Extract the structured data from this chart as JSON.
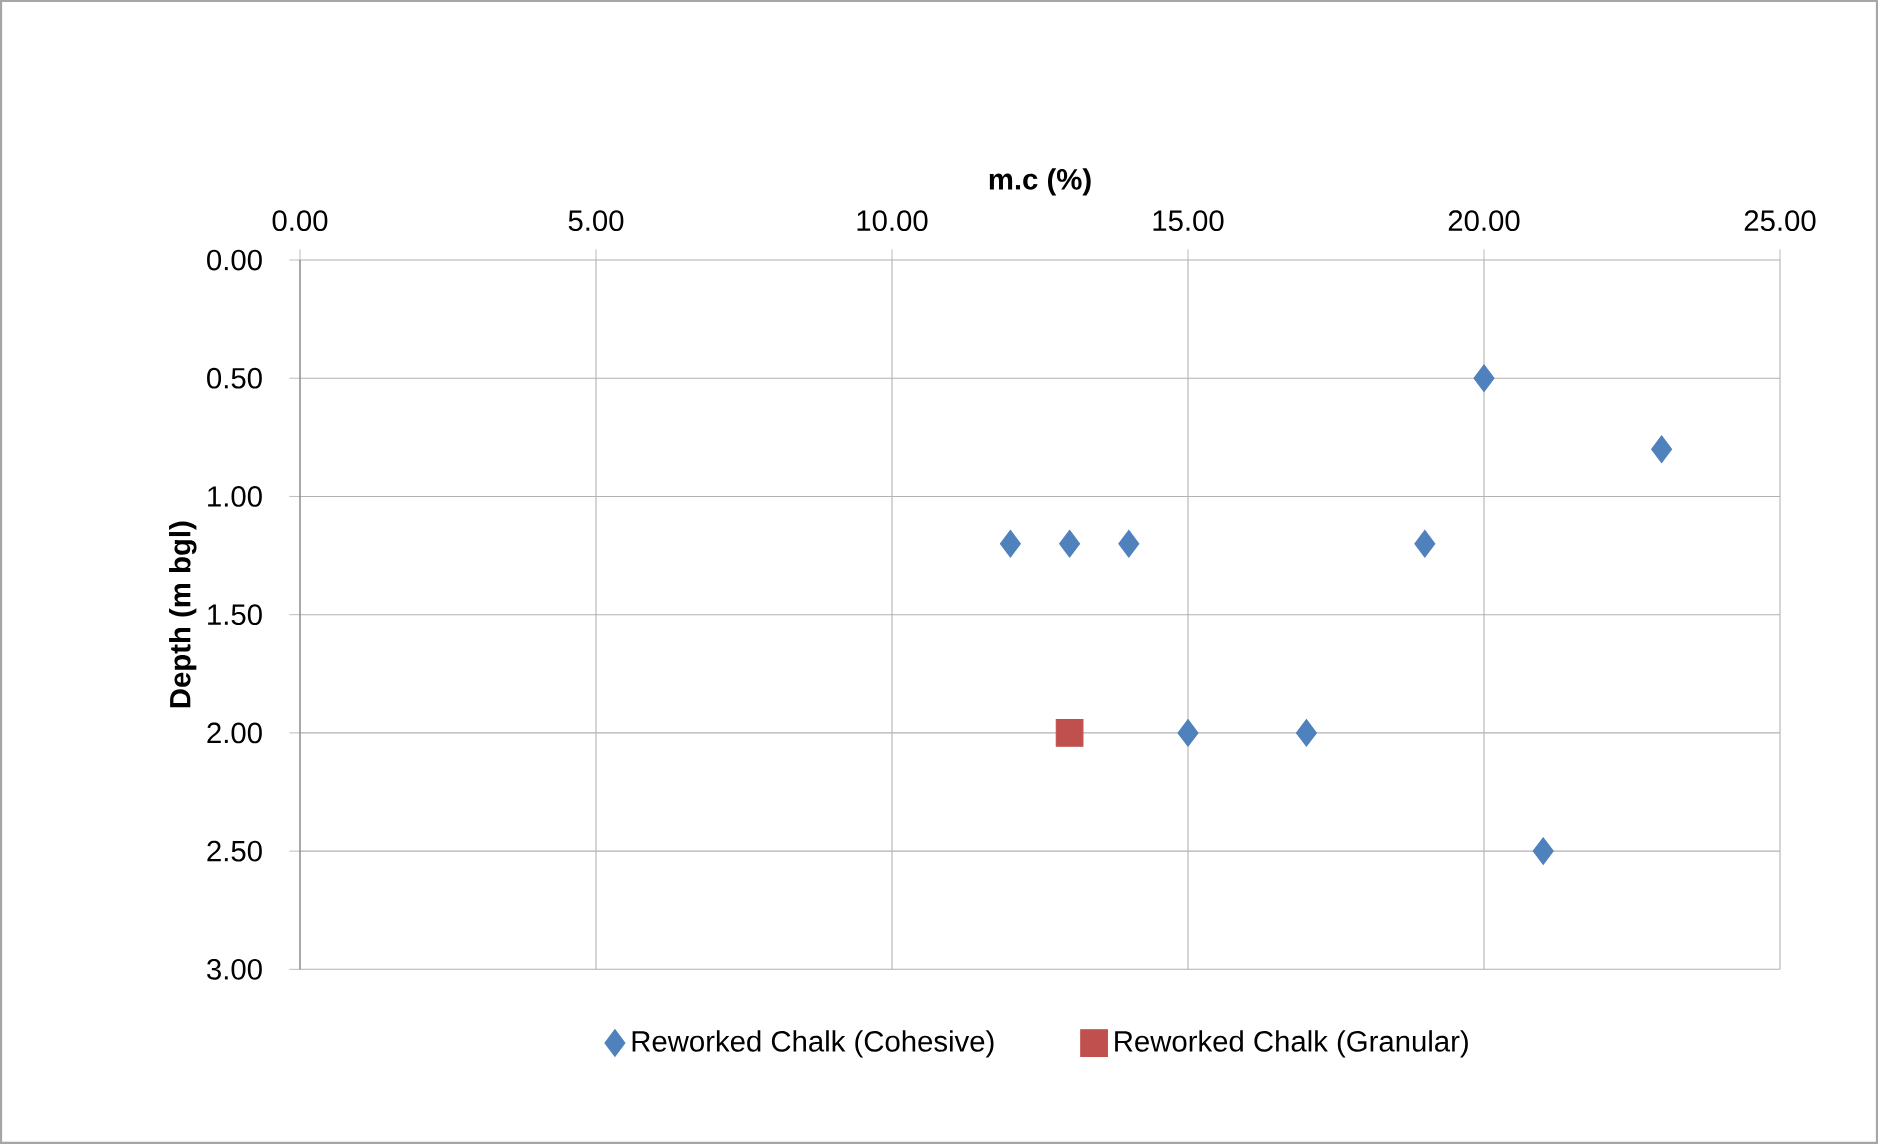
{
  "chart_data": {
    "type": "scatter",
    "xlabel": "m.c (%)",
    "ylabel": "Depth (m bgl)",
    "xlim": [
      0,
      25
    ],
    "ylim": [
      3,
      0
    ],
    "xticks": [
      {
        "value": 0,
        "label": "0.00"
      },
      {
        "value": 5,
        "label": "5.00"
      },
      {
        "value": 10,
        "label": "10.00"
      },
      {
        "value": 15,
        "label": "15.00"
      },
      {
        "value": 20,
        "label": "20.00"
      },
      {
        "value": 25,
        "label": "25.00"
      }
    ],
    "yticks": [
      {
        "value": 0,
        "label": "0.00"
      },
      {
        "value": 0.5,
        "label": "0.50"
      },
      {
        "value": 1,
        "label": "1.00"
      },
      {
        "value": 1.5,
        "label": "1.50"
      },
      {
        "value": 2,
        "label": "2.00"
      },
      {
        "value": 2.5,
        "label": "2.50"
      },
      {
        "value": 3,
        "label": "3.00"
      }
    ],
    "grid": true,
    "legend": "bottom",
    "series": [
      {
        "name": "Reworked Chalk (Cohesive)",
        "color": "#4f81bd",
        "marker": "diamond",
        "x": [
          20,
          23,
          12,
          13,
          14,
          19,
          15,
          17,
          21
        ],
        "values": [
          0.5,
          0.8,
          1.2,
          1.2,
          1.2,
          1.2,
          2.0,
          2.0,
          2.5
        ]
      },
      {
        "name": "Reworked Chalk (Granular)",
        "color": "#c0504d",
        "marker": "square",
        "x": [
          13
        ],
        "values": [
          2.0
        ]
      }
    ]
  }
}
